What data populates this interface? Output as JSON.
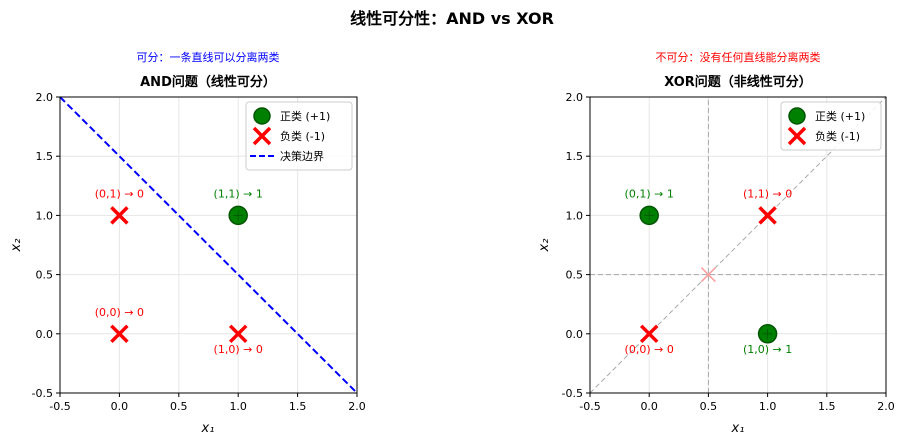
{
  "figure": {
    "suptitle": "线性可分性：AND vs XOR"
  },
  "chart_data": [
    {
      "type": "scatter",
      "annotation_top": "可分：一条直线可以分离两类",
      "annotation_color": "#0000ff",
      "title": "AND问题（线性可分）",
      "xlabel": "x₁",
      "ylabel": "x₂",
      "xlim": [
        -0.5,
        2.0
      ],
      "ylim": [
        -0.5,
        2.0
      ],
      "xticks": [
        "-0.5",
        "0.0",
        "0.5",
        "1.0",
        "1.5",
        "2.0"
      ],
      "yticks": [
        "-0.5",
        "0.0",
        "0.5",
        "1.0",
        "1.5",
        "2.0"
      ],
      "grid": true,
      "legend_position": "top-right",
      "legend": [
        {
          "label": "正类 (+1)",
          "marker": "circle",
          "color": "#008000"
        },
        {
          "label": "负类 (-1)",
          "marker": "x",
          "color": "#ff0000"
        },
        {
          "label": "决策边界",
          "marker": "dashed-line",
          "color": "#0000ff"
        }
      ],
      "points": [
        {
          "x": 0,
          "y": 0,
          "class": "neg",
          "label": "(0,0) → 0",
          "label_pos": "above"
        },
        {
          "x": 0,
          "y": 1,
          "class": "neg",
          "label": "(0,1) → 0",
          "label_pos": "above"
        },
        {
          "x": 1,
          "y": 0,
          "class": "neg",
          "label": "(1,0) → 0",
          "label_pos": "below"
        },
        {
          "x": 1,
          "y": 1,
          "class": "pos",
          "label": "(1,1) → 1",
          "label_pos": "above"
        }
      ],
      "boundary": {
        "x": [
          -0.5,
          2.0
        ],
        "y": [
          2.0,
          -0.5
        ],
        "color": "#0000ff",
        "style": "dashed"
      }
    },
    {
      "type": "scatter",
      "annotation_top": "不可分：没有任何直线能分离两类",
      "annotation_color": "#ff0000",
      "title": "XOR问题（非线性可分）",
      "xlabel": "x₁",
      "ylabel": "x₂",
      "xlim": [
        -0.5,
        2.0
      ],
      "ylim": [
        -0.5,
        2.0
      ],
      "xticks": [
        "-0.5",
        "0.0",
        "0.5",
        "1.0",
        "1.5",
        "2.0"
      ],
      "yticks": [
        "-0.5",
        "0.0",
        "0.5",
        "1.0",
        "1.5",
        "2.0"
      ],
      "grid": true,
      "legend_position": "top-right",
      "legend": [
        {
          "label": "正类 (+1)",
          "marker": "circle",
          "color": "#008000"
        },
        {
          "label": "负类 (-1)",
          "marker": "x",
          "color": "#ff0000"
        }
      ],
      "points": [
        {
          "x": 0,
          "y": 0,
          "class": "neg",
          "label": "(0,0) → 0",
          "label_pos": "below"
        },
        {
          "x": 0,
          "y": 1,
          "class": "pos",
          "label": "(0,1) → 1",
          "label_pos": "above"
        },
        {
          "x": 1,
          "y": 0,
          "class": "pos",
          "label": "(1,0) → 1",
          "label_pos": "below"
        },
        {
          "x": 1,
          "y": 1,
          "class": "neg",
          "label": "(1,1) → 0",
          "label_pos": "above"
        }
      ],
      "guide_lines": [
        {
          "x": [
            0.5,
            0.5
          ],
          "y": [
            -0.5,
            2.0
          ],
          "color": "#999999"
        },
        {
          "x": [
            -0.5,
            2.0
          ],
          "y": [
            0.5,
            0.5
          ],
          "color": "#999999"
        },
        {
          "x": [
            -0.5,
            2.0
          ],
          "y": [
            -0.5,
            2.0
          ],
          "color": "#999999"
        }
      ],
      "failed_marker": {
        "x": 0.5,
        "y": 0.5,
        "marker": "x",
        "color": "#ff9999"
      }
    }
  ],
  "colors": {
    "positive": "#008000",
    "negative": "#ff0000",
    "boundary": "#0000ff",
    "grid": "#e6e6e6",
    "guide": "#aaaaaa"
  }
}
